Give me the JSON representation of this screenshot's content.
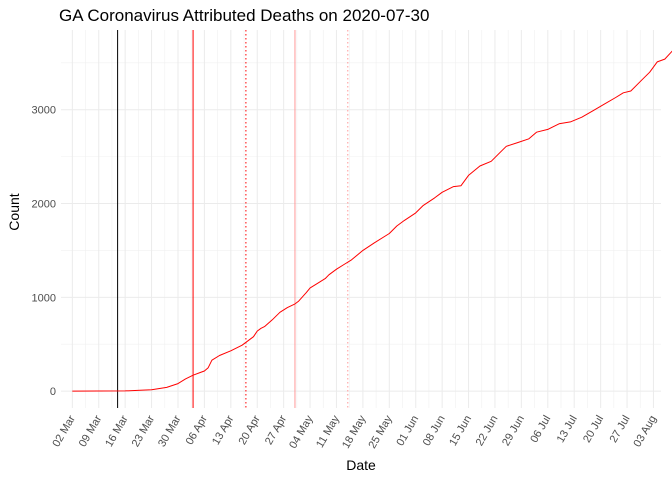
{
  "chart_data": {
    "type": "line",
    "title": "GA Coronavirus Attributed Deaths on 2020-07-30",
    "xlabel": "Date",
    "ylabel": "Count",
    "x_ticks": [
      "02 Mar",
      "09 Mar",
      "16 Mar",
      "23 Mar",
      "30 Mar",
      "06 Apr",
      "13 Apr",
      "20 Apr",
      "27 Apr",
      "04 May",
      "11 May",
      "18 May",
      "25 May",
      "01 Jun",
      "08 Jun",
      "15 Jun",
      "22 Jun",
      "29 Jun",
      "06 Jul",
      "13 Jul",
      "20 Jul",
      "27 Jul",
      "03 Aug"
    ],
    "x_tick_dates": [
      "2020-03-02",
      "2020-03-09",
      "2020-03-16",
      "2020-03-23",
      "2020-03-30",
      "2020-04-06",
      "2020-04-13",
      "2020-04-20",
      "2020-04-27",
      "2020-05-04",
      "2020-05-11",
      "2020-05-18",
      "2020-05-25",
      "2020-06-01",
      "2020-06-08",
      "2020-06-15",
      "2020-06-22",
      "2020-06-29",
      "2020-07-06",
      "2020-07-13",
      "2020-07-20",
      "2020-07-27",
      "2020-08-03"
    ],
    "xlim": [
      "2020-02-28",
      "2020-08-05"
    ],
    "y_ticks": [
      0,
      1000,
      2000,
      3000
    ],
    "ylim": [
      -180,
      3850
    ],
    "grid": true,
    "reference_lines": [
      {
        "date": "2020-03-14",
        "color": "#000000",
        "style": "solid"
      },
      {
        "date": "2020-04-03",
        "color": "#ff0000",
        "style": "solid"
      },
      {
        "date": "2020-04-17",
        "color": "#ff0000",
        "style": "dotted"
      },
      {
        "date": "2020-04-30",
        "color": "#ff9999",
        "style": "solid"
      },
      {
        "date": "2020-05-14",
        "color": "#ff9999",
        "style": "dotted"
      }
    ],
    "series": [
      {
        "color": "#ff0000",
        "points": [
          [
            "2020-03-02",
            0
          ],
          [
            "2020-03-09",
            1
          ],
          [
            "2020-03-16",
            2
          ],
          [
            "2020-03-20",
            10
          ],
          [
            "2020-03-23",
            15
          ],
          [
            "2020-03-27",
            40
          ],
          [
            "2020-03-30",
            80
          ],
          [
            "2020-04-01",
            130
          ],
          [
            "2020-04-03",
            170
          ],
          [
            "2020-04-05",
            200
          ],
          [
            "2020-04-06",
            215
          ],
          [
            "2020-04-07",
            250
          ],
          [
            "2020-04-08",
            330
          ],
          [
            "2020-04-10",
            380
          ],
          [
            "2020-04-13",
            430
          ],
          [
            "2020-04-16",
            490
          ],
          [
            "2020-04-19",
            580
          ],
          [
            "2020-04-20",
            640
          ],
          [
            "2020-04-21",
            670
          ],
          [
            "2020-04-22",
            690
          ],
          [
            "2020-04-24",
            760
          ],
          [
            "2020-04-26",
            840
          ],
          [
            "2020-04-28",
            890
          ],
          [
            "2020-04-30",
            930
          ],
          [
            "2020-05-01",
            960
          ],
          [
            "2020-05-03",
            1050
          ],
          [
            "2020-05-04",
            1100
          ],
          [
            "2020-05-06",
            1150
          ],
          [
            "2020-05-08",
            1200
          ],
          [
            "2020-05-09",
            1240
          ],
          [
            "2020-05-11",
            1300
          ],
          [
            "2020-05-13",
            1350
          ],
          [
            "2020-05-15",
            1400
          ],
          [
            "2020-05-18",
            1500
          ],
          [
            "2020-05-21",
            1580
          ],
          [
            "2020-05-25",
            1680
          ],
          [
            "2020-05-27",
            1760
          ],
          [
            "2020-05-29",
            1820
          ],
          [
            "2020-06-01",
            1900
          ],
          [
            "2020-06-03",
            1980
          ],
          [
            "2020-06-06",
            2060
          ],
          [
            "2020-06-08",
            2120
          ],
          [
            "2020-06-11",
            2180
          ],
          [
            "2020-06-13",
            2190
          ],
          [
            "2020-06-15",
            2300
          ],
          [
            "2020-06-18",
            2400
          ],
          [
            "2020-06-21",
            2450
          ],
          [
            "2020-06-23",
            2530
          ],
          [
            "2020-06-25",
            2610
          ],
          [
            "2020-06-28",
            2650
          ],
          [
            "2020-07-01",
            2690
          ],
          [
            "2020-07-03",
            2760
          ],
          [
            "2020-07-06",
            2790
          ],
          [
            "2020-07-09",
            2850
          ],
          [
            "2020-07-12",
            2870
          ],
          [
            "2020-07-15",
            2920
          ],
          [
            "2020-07-18",
            2990
          ],
          [
            "2020-07-21",
            3060
          ],
          [
            "2020-07-24",
            3130
          ],
          [
            "2020-07-26",
            3180
          ],
          [
            "2020-07-28",
            3200
          ],
          [
            "2020-07-31",
            3320
          ],
          [
            "2020-08-02",
            3400
          ],
          [
            "2020-08-04",
            3510
          ],
          [
            "2020-08-06",
            3540
          ],
          [
            "2020-08-09",
            3670
          ],
          [
            "2020-08-10",
            3680
          ]
        ]
      }
    ]
  }
}
